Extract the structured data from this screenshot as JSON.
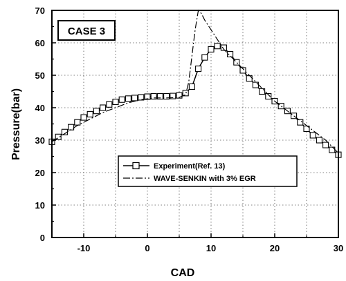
{
  "chart_data": {
    "type": "line",
    "case_label": "CASE 3",
    "xlabel": "CAD",
    "ylabel": "Pressure(bar)",
    "xlim": [
      -15,
      30
    ],
    "ylim": [
      0,
      70
    ],
    "xticks": [
      "-10",
      "0",
      "10",
      "20",
      "30"
    ],
    "yticks": [
      "0",
      "10",
      "20",
      "30",
      "40",
      "50",
      "60",
      "70"
    ],
    "grid": true,
    "legend_position": "lower-center",
    "series": [
      {
        "name": "Experiment(Ref. 13)",
        "style": "solid-square-markers",
        "color": "#000000",
        "x": [
          -15,
          -14,
          -13,
          -12,
          -11,
          -10,
          -9,
          -8,
          -7,
          -6,
          -5,
          -4,
          -3,
          -2,
          -1,
          0,
          1,
          2,
          3,
          4,
          5,
          6,
          7,
          8,
          9,
          10,
          11,
          12,
          13,
          14,
          15,
          16,
          17,
          18,
          19,
          20,
          21,
          22,
          23,
          24,
          25,
          26,
          27,
          28,
          29,
          30
        ],
        "y": [
          29.5,
          31,
          32.5,
          34,
          35.5,
          37,
          38,
          39,
          40,
          41,
          41.8,
          42.5,
          42.8,
          43,
          43.2,
          43.4,
          43.5,
          43.5,
          43.5,
          43.6,
          43.8,
          44.5,
          46.5,
          52,
          55.5,
          58,
          59,
          58.5,
          56.5,
          54,
          51.5,
          49,
          47,
          45,
          43.5,
          42,
          40.5,
          39,
          37.5,
          35.5,
          33.5,
          31.5,
          30,
          28.5,
          27,
          25.5
        ]
      },
      {
        "name": "WAVE-SENKIN with 3% EGR",
        "style": "dash-dot",
        "color": "#000000",
        "x": [
          -15,
          -13,
          -11,
          -9,
          -7,
          -5,
          -3,
          -1,
          1,
          3,
          5,
          6,
          6.5,
          7,
          7.5,
          8,
          8.5,
          9,
          10,
          11,
          12,
          13,
          14,
          16,
          18,
          20,
          22,
          24,
          26,
          28,
          30
        ],
        "y": [
          29.5,
          32,
          34.5,
          36.5,
          38.5,
          40,
          41.5,
          42.5,
          43,
          43,
          43.2,
          44,
          48,
          56,
          64,
          70,
          69,
          67,
          64,
          61,
          58,
          56,
          54,
          50,
          46,
          42,
          39,
          36,
          33,
          30,
          26
        ]
      }
    ]
  }
}
